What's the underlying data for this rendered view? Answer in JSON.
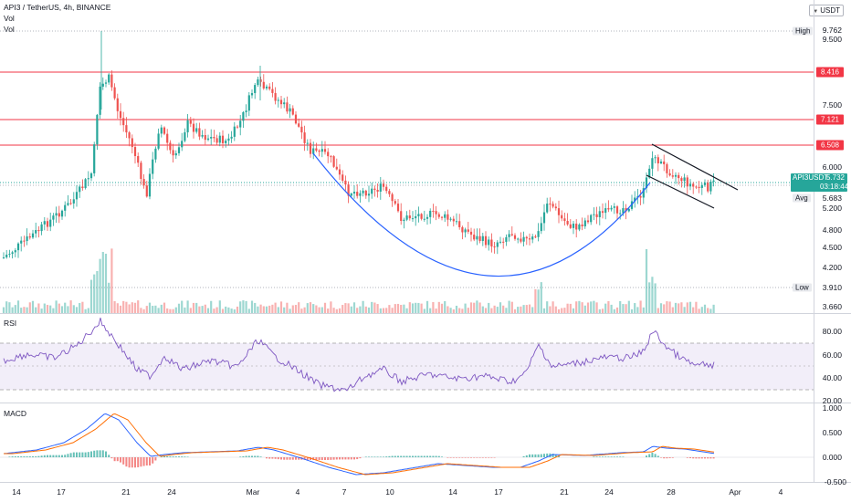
{
  "header": {
    "symbol_line": "API3 / TetherUS, 4h, BINANCE",
    "vol1": "Vol",
    "vol2": "Vol",
    "currency": "USDT"
  },
  "price_axis": {
    "labels": [
      "9.500",
      "8.416",
      "7.500",
      "7.121",
      "6.508",
      "6.000",
      "5.683",
      "5.200",
      "4.800",
      "4.500",
      "4.200",
      "3.660"
    ],
    "high_label": "High",
    "high_value": "9.762",
    "low_label": "Low",
    "low_value": "3.910",
    "avg_label": "Avg",
    "avg_value": "5.683",
    "current_symbol": "API3USDT",
    "current_price": "5.732",
    "countdown": "03:18:44",
    "resistance_levels": [
      "8.416",
      "7.121",
      "6.508"
    ],
    "red_level_color": "#f23645",
    "up_color": "#26a69a",
    "down_color": "#ef5350"
  },
  "rsi": {
    "title": "RSI",
    "labels": [
      "80.00",
      "60.00",
      "40.00",
      "20.00"
    ],
    "line_color": "#7e57c2",
    "band_color": "#ede7f6"
  },
  "macd": {
    "title": "MACD",
    "labels": [
      "1.000",
      "0.500",
      "0.000",
      "-0.500"
    ],
    "macd_color": "#2962ff",
    "signal_color": "#ff6d00"
  },
  "time_axis": {
    "labels": [
      "14",
      "17",
      "21",
      "24",
      "Mar",
      "4",
      "7",
      "10",
      "14",
      "17",
      "21",
      "24",
      "28",
      "Apr",
      "4"
    ]
  }
}
